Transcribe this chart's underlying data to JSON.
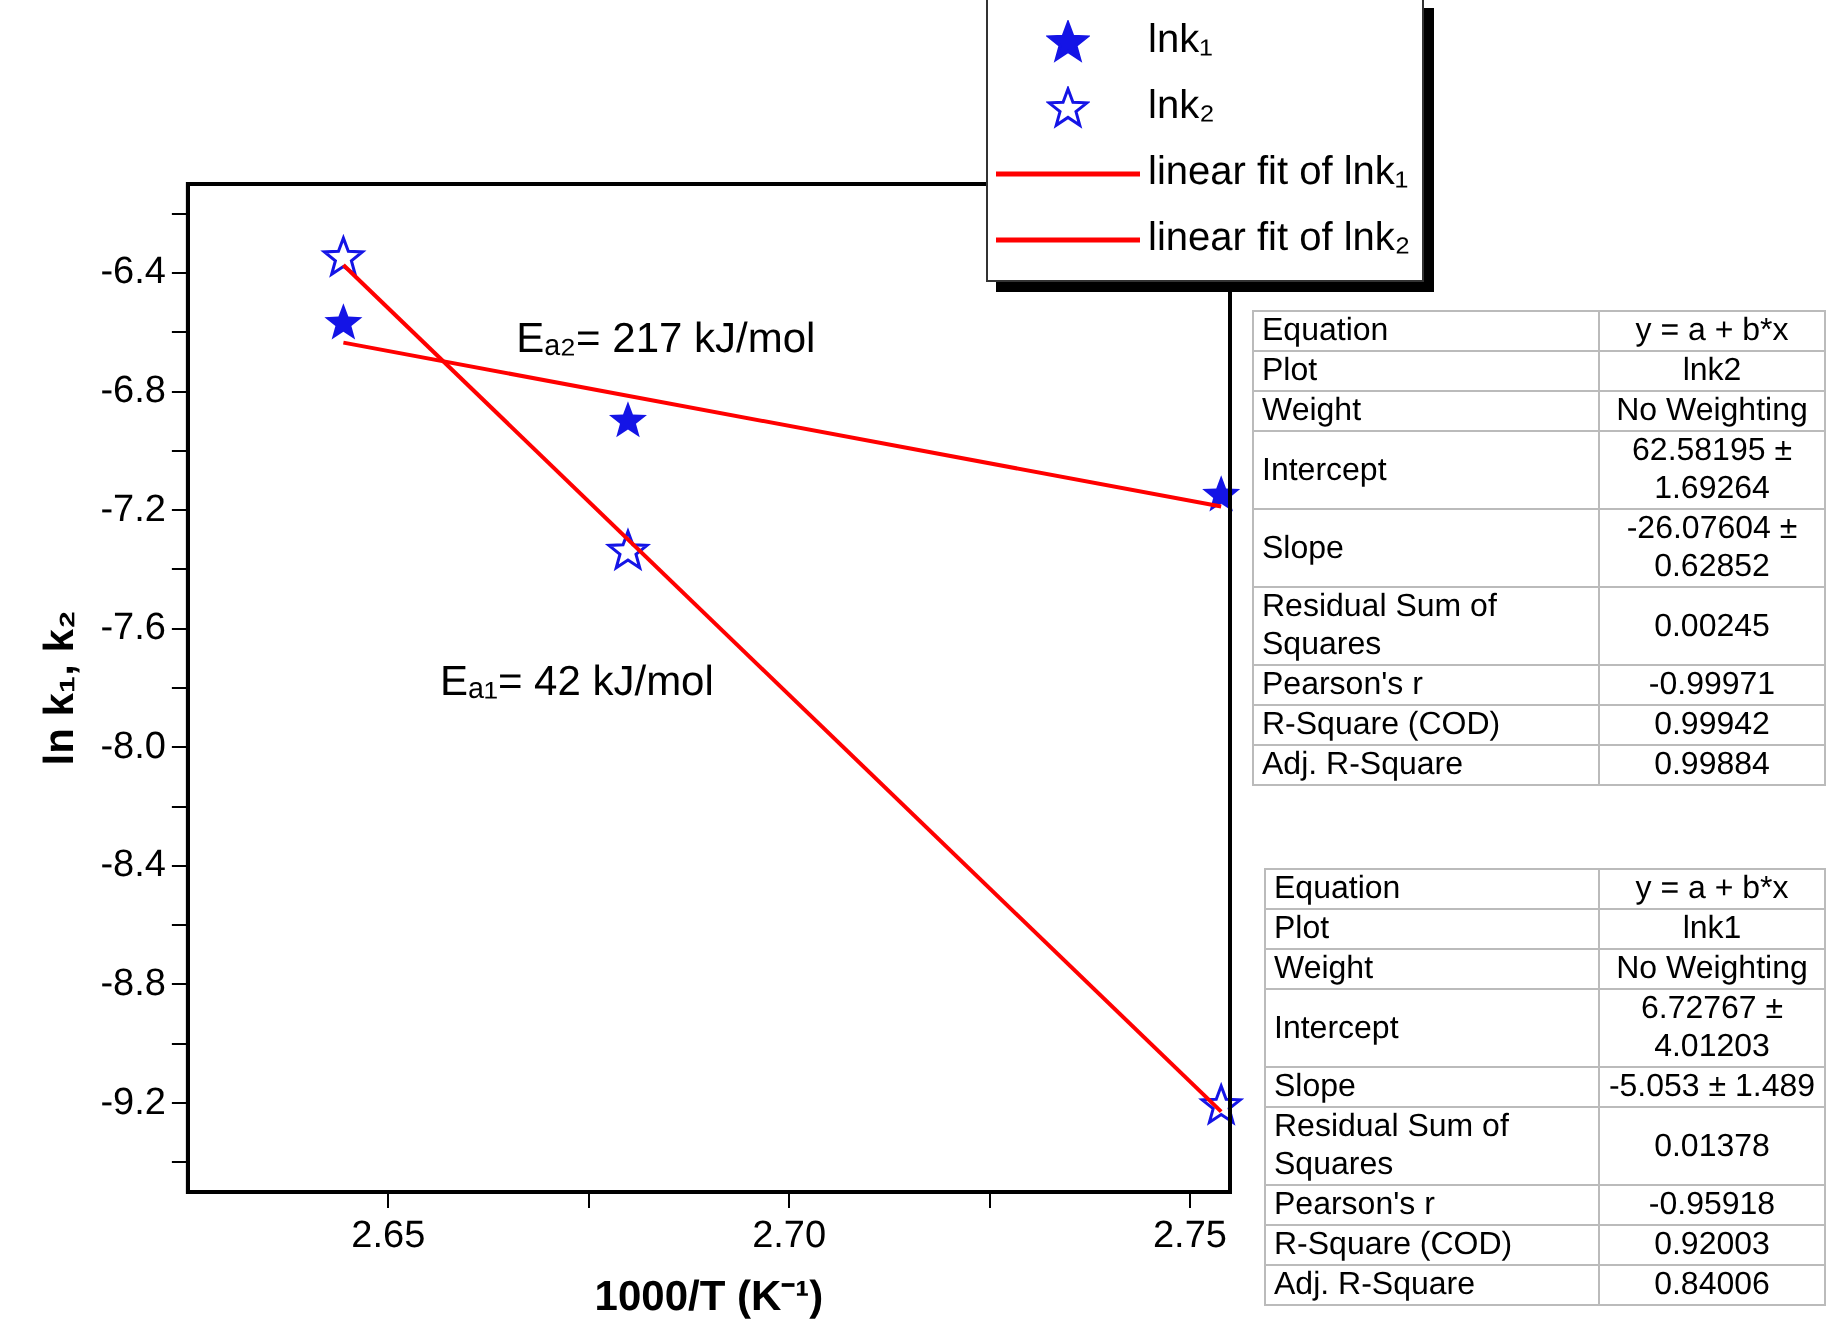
{
  "chart_data": {
    "type": "scatter",
    "xlabel": "1000/T (K⁻¹)",
    "ylabel": "ln k₁, k₂",
    "xlim": [
      2.625,
      2.755
    ],
    "ylim": [
      -9.5,
      -6.1
    ],
    "xticks": [
      {
        "value": 2.65,
        "label": "2.65"
      },
      {
        "value": 2.675,
        "label": null
      },
      {
        "value": 2.7,
        "label": "2.70"
      },
      {
        "value": 2.725,
        "label": null
      },
      {
        "value": 2.75,
        "label": "2.75"
      }
    ],
    "yticks": [
      {
        "value": -9.4,
        "label": null
      },
      -9.2,
      {
        "value": -9.0,
        "label": null
      },
      -8.8,
      {
        "value": -8.6,
        "label": null
      },
      -8.4,
      {
        "value": -8.2,
        "label": null
      },
      {
        "value": -8.0,
        "label": "-8.0"
      },
      {
        "value": -7.8,
        "label": null
      },
      -7.6,
      {
        "value": -7.4,
        "label": null
      },
      -7.2,
      {
        "value": -7.0,
        "label": null
      },
      -6.8,
      {
        "value": -6.6,
        "label": null
      },
      -6.4,
      {
        "value": -6.2,
        "label": null
      }
    ],
    "grid": false,
    "legend": "top right",
    "series": [
      {
        "name": "lnk₁",
        "marker": "star",
        "color": "#1414e6",
        "x": [
          2.6444,
          2.6799,
          2.7539
        ],
        "values": [
          -6.57,
          -6.9,
          -7.15
        ]
      },
      {
        "name": "lnk₂",
        "marker": "star",
        "color": "#1414e6",
        "x": [
          2.6444,
          2.6799,
          2.7539
        ],
        "values": [
          -6.35,
          -7.34,
          -9.21
        ]
      },
      {
        "name": "linear fit of lnk₁",
        "type": "line",
        "marker": "none",
        "color": "#ff0000",
        "x": [
          2.6444,
          2.7539
        ],
        "values": [
          -6.635,
          -7.188
        ]
      },
      {
        "name": "linear fit of lnk₂",
        "type": "line",
        "marker": "none",
        "color": "#ff0000",
        "x": [
          2.6444,
          2.7539
        ],
        "values": [
          -6.373,
          -9.229
        ]
      }
    ],
    "annotations": [
      "Eₐ₂= 217 kJ/mol",
      "Eₐ₁= 42 kJ/mol",
      "Equation",
      "y = a + b*x",
      "Plot",
      "lnk2",
      "Weight",
      "No Weighting",
      "Intercept",
      "62.58195 ± 1.69264",
      "Slope",
      "-26.07604 ± 0.62852",
      "Residual Sum of Squares",
      "0.00245",
      "Pearson's r",
      "-0.99971",
      "R-Square (COD)",
      "0.99942",
      "Adj. R-Square",
      "0.99884",
      "Equation",
      "y = a + b*x",
      "Plot",
      "lnk1",
      "Weight",
      "No Weighting",
      "Intercept",
      "6.72767 ± 4.01203",
      "Slope",
      "-5.053 ± 1.489",
      "Residual Sum of Squares",
      "0.01378",
      "Pearson's r",
      "-0.95918",
      "R-Square (COD)",
      "0.92003",
      "Adj. R-Square",
      "0.84006"
    ]
  }
}
